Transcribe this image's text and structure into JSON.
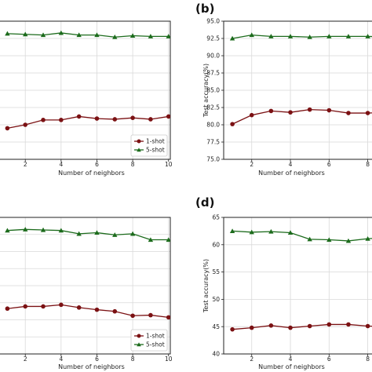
{
  "colors": {
    "one_shot": "#7b1113",
    "five_shot": "#1c6b1c",
    "grid": "#d9d9d9"
  },
  "chart_data": [
    {
      "id": "a",
      "type": "line",
      "panel_label": "",
      "xlabel": "Number of neighbors",
      "ylabel": "",
      "xlim": [
        0.5,
        10.1
      ],
      "xticks": [
        2,
        4,
        6,
        8,
        10
      ],
      "ylim": [
        75,
        95
      ],
      "yticks": [],
      "x": [
        1,
        2,
        3,
        4,
        5,
        6,
        7,
        8,
        9,
        10
      ],
      "series": [
        {
          "name": "1-shot",
          "marker": "circle",
          "values": [
            79.5,
            80.0,
            80.7,
            80.7,
            81.2,
            80.9,
            80.8,
            81.0,
            80.8,
            81.2
          ]
        },
        {
          "name": "5-shot",
          "marker": "triangle",
          "values": [
            93.2,
            93.1,
            93.0,
            93.3,
            93.0,
            93.0,
            92.7,
            92.9,
            92.8,
            92.8
          ]
        }
      ],
      "legend": {
        "position": "lower-right"
      },
      "grid": true
    },
    {
      "id": "b",
      "type": "line",
      "panel_label": "(b)",
      "xlabel": "Number of neighbors",
      "ylabel": "Test accuracy(%)",
      "xlim": [
        0.55,
        8.3
      ],
      "xticks": [
        2,
        4,
        6,
        8
      ],
      "ylim": [
        75,
        95
      ],
      "yticks": [
        "75.0",
        "77.5",
        "80.0",
        "82.5",
        "85.0",
        "87.5",
        "90.0",
        "92.5",
        "95.0"
      ],
      "x": [
        1,
        2,
        3,
        4,
        5,
        6,
        7,
        8,
        9
      ],
      "series": [
        {
          "name": "1-shot",
          "marker": "circle",
          "values": [
            80.1,
            81.4,
            82.0,
            81.8,
            82.2,
            82.1,
            81.7,
            81.7,
            81.8
          ]
        },
        {
          "name": "5-shot",
          "marker": "triangle",
          "values": [
            92.5,
            93.0,
            92.8,
            92.8,
            92.7,
            92.8,
            92.8,
            92.8,
            92.7
          ]
        }
      ],
      "legend": null,
      "grid": true
    },
    {
      "id": "c",
      "type": "line",
      "panel_label": "",
      "xlabel": "Number of neighbors",
      "ylabel": "",
      "xlim": [
        0.5,
        10.1
      ],
      "xticks": [
        2,
        4,
        6,
        8,
        10
      ],
      "ylim": [
        40,
        65
      ],
      "yticks": [],
      "x": [
        1,
        2,
        3,
        4,
        5,
        6,
        7,
        8,
        9,
        10
      ],
      "series": [
        {
          "name": "1-shot",
          "marker": "circle",
          "values": [
            48.3,
            48.7,
            48.7,
            49.0,
            48.5,
            48.1,
            47.8,
            47.0,
            47.1,
            46.7
          ]
        },
        {
          "name": "5-shot",
          "marker": "triangle",
          "values": [
            62.6,
            62.8,
            62.7,
            62.6,
            62.0,
            62.2,
            61.8,
            62.0,
            60.9,
            60.9
          ]
        }
      ],
      "legend": {
        "position": "lower-right"
      },
      "grid": true
    },
    {
      "id": "d",
      "type": "line",
      "panel_label": "(d)",
      "xlabel": "Number of neighbors",
      "ylabel": "Test accuracy(%)",
      "xlim": [
        0.55,
        8.3
      ],
      "xticks": [
        2,
        4,
        6,
        8
      ],
      "ylim": [
        40,
        65
      ],
      "yticks": [
        "40",
        "45",
        "50",
        "55",
        "60",
        "65"
      ],
      "x": [
        1,
        2,
        3,
        4,
        5,
        6,
        7,
        8,
        9
      ],
      "series": [
        {
          "name": "1-shot",
          "marker": "circle",
          "values": [
            44.5,
            44.8,
            45.2,
            44.8,
            45.1,
            45.4,
            45.4,
            45.1,
            45.0
          ]
        },
        {
          "name": "5-shot",
          "marker": "triangle",
          "values": [
            62.5,
            62.3,
            62.4,
            62.2,
            61.0,
            60.9,
            60.7,
            61.1,
            61.3
          ]
        }
      ],
      "legend": null,
      "grid": true
    }
  ]
}
